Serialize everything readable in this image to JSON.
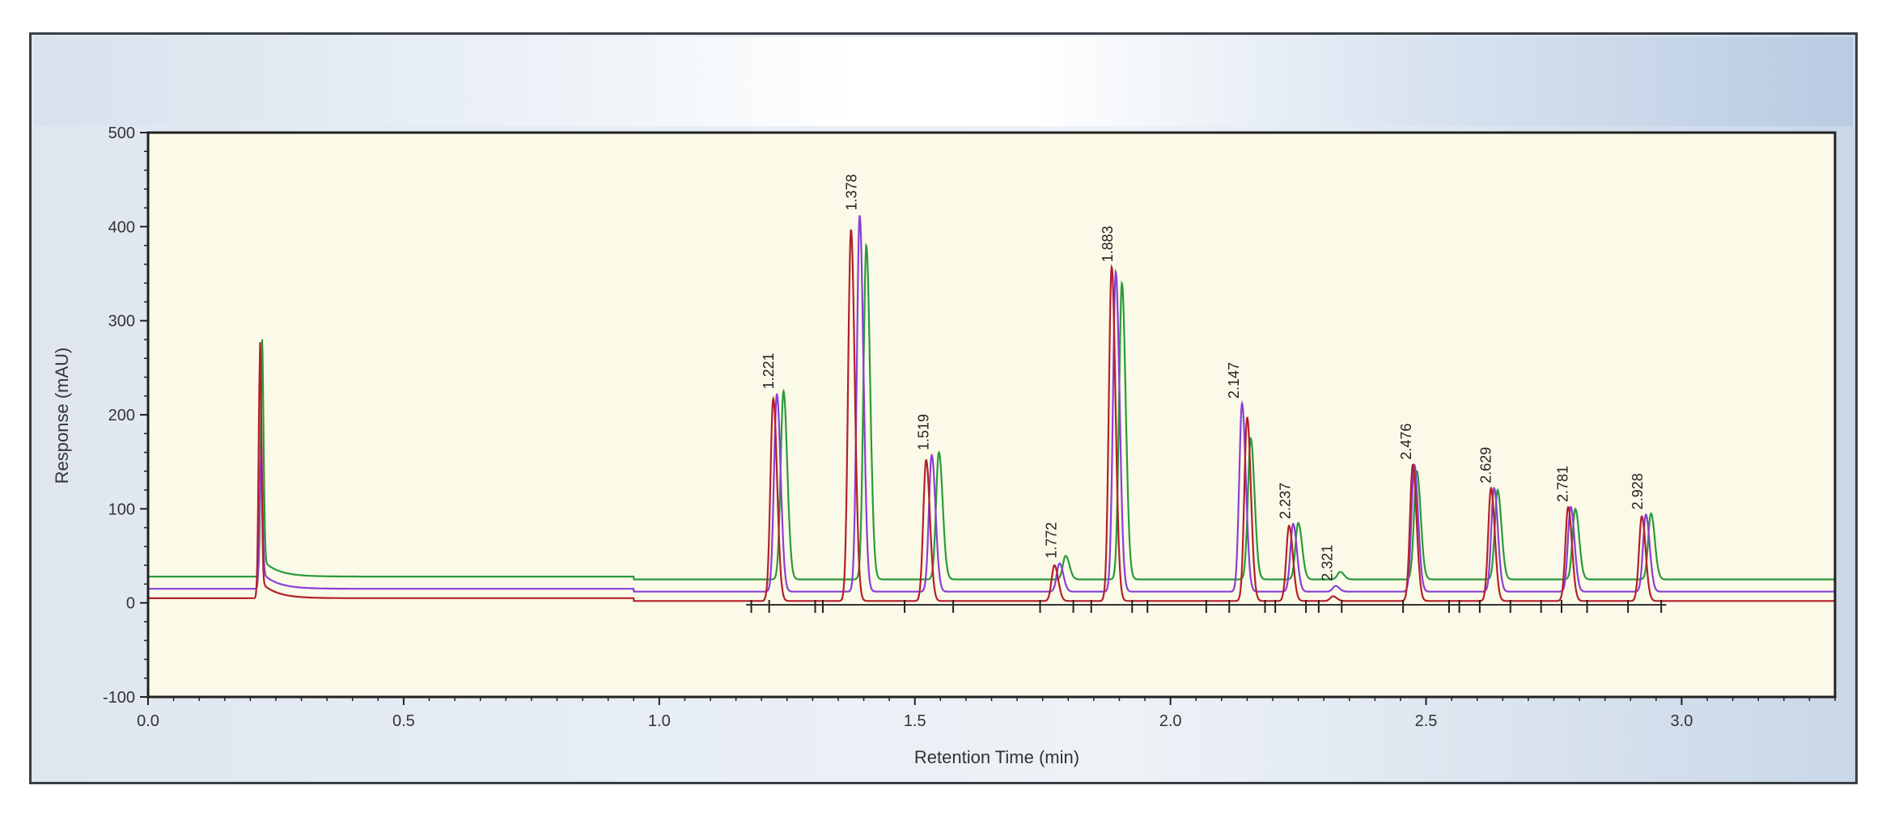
{
  "colors": {
    "plot_background": "#fbfae8",
    "series_green": "#2a9a3a",
    "series_violet": "#8a3fd6",
    "series_red": "#b3202a",
    "axis": "#222222"
  },
  "chart_data": {
    "type": "line",
    "title": "",
    "xlabel": "Retention Time (min)",
    "ylabel": "Response (mAU)",
    "xlim": [
      0.0,
      3.3
    ],
    "ylim": [
      -100,
      500
    ],
    "xticks": [
      "0.0",
      "0.5",
      "1.0",
      "1.5",
      "2.0",
      "2.5",
      "3.0"
    ],
    "yticks": [
      "-100",
      "0",
      "100",
      "200",
      "300",
      "400",
      "500"
    ],
    "grid": false,
    "legend": "none",
    "peak_labels": [
      "1.221",
      "1.378",
      "1.519",
      "1.772",
      "1.883",
      "2.147",
      "2.237",
      "2.321",
      "2.476",
      "2.629",
      "2.781",
      "2.928"
    ],
    "series": [
      {
        "color": "#2a9a3a",
        "baseline": 25,
        "solvent_peak": {
          "rt": 0.223,
          "height": 235
        },
        "peaks": [
          {
            "rt": 1.243,
            "height": 200
          },
          {
            "rt": 1.405,
            "height": 355
          },
          {
            "rt": 1.547,
            "height": 135
          },
          {
            "rt": 1.795,
            "height": 25
          },
          {
            "rt": 1.905,
            "height": 315
          },
          {
            "rt": 2.157,
            "height": 150
          },
          {
            "rt": 2.25,
            "height": 60
          },
          {
            "rt": 2.332,
            "height": 8
          },
          {
            "rt": 2.482,
            "height": 115
          },
          {
            "rt": 2.64,
            "height": 95
          },
          {
            "rt": 2.792,
            "height": 75
          },
          {
            "rt": 2.94,
            "height": 70
          }
        ]
      },
      {
        "color": "#8a3fd6",
        "baseline": 12,
        "solvent_peak": {
          "rt": 0.221,
          "height": 140
        },
        "peaks": [
          {
            "rt": 1.23,
            "height": 210
          },
          {
            "rt": 1.392,
            "height": 400
          },
          {
            "rt": 1.533,
            "height": 145
          },
          {
            "rt": 1.783,
            "height": 30
          },
          {
            "rt": 1.893,
            "height": 340
          },
          {
            "rt": 2.14,
            "height": 200
          },
          {
            "rt": 2.24,
            "height": 72
          },
          {
            "rt": 2.323,
            "height": 6
          },
          {
            "rt": 2.477,
            "height": 135
          },
          {
            "rt": 2.633,
            "height": 110
          },
          {
            "rt": 2.783,
            "height": 90
          },
          {
            "rt": 2.93,
            "height": 82
          }
        ]
      },
      {
        "color": "#b3202a",
        "baseline": 2,
        "solvent_peak": {
          "rt": 0.219,
          "height": 255
        },
        "peaks": [
          {
            "rt": 1.223,
            "height": 215
          },
          {
            "rt": 1.375,
            "height": 395
          },
          {
            "rt": 1.522,
            "height": 150
          },
          {
            "rt": 1.773,
            "height": 38
          },
          {
            "rt": 1.885,
            "height": 355
          },
          {
            "rt": 2.15,
            "height": 195
          },
          {
            "rt": 2.232,
            "height": 80
          },
          {
            "rt": 2.318,
            "height": 5
          },
          {
            "rt": 2.474,
            "height": 145
          },
          {
            "rt": 2.627,
            "height": 120
          },
          {
            "rt": 2.778,
            "height": 100
          },
          {
            "rt": 2.922,
            "height": 90
          }
        ]
      }
    ],
    "integration_marks_x": [
      1.18,
      1.215,
      1.305,
      1.32,
      1.48,
      1.575,
      1.745,
      1.81,
      1.845,
      1.925,
      1.955,
      2.07,
      2.115,
      2.185,
      2.205,
      2.265,
      2.29,
      2.335,
      2.455,
      2.545,
      2.565,
      2.605,
      2.665,
      2.725,
      2.765,
      2.815,
      2.895,
      2.96
    ]
  }
}
